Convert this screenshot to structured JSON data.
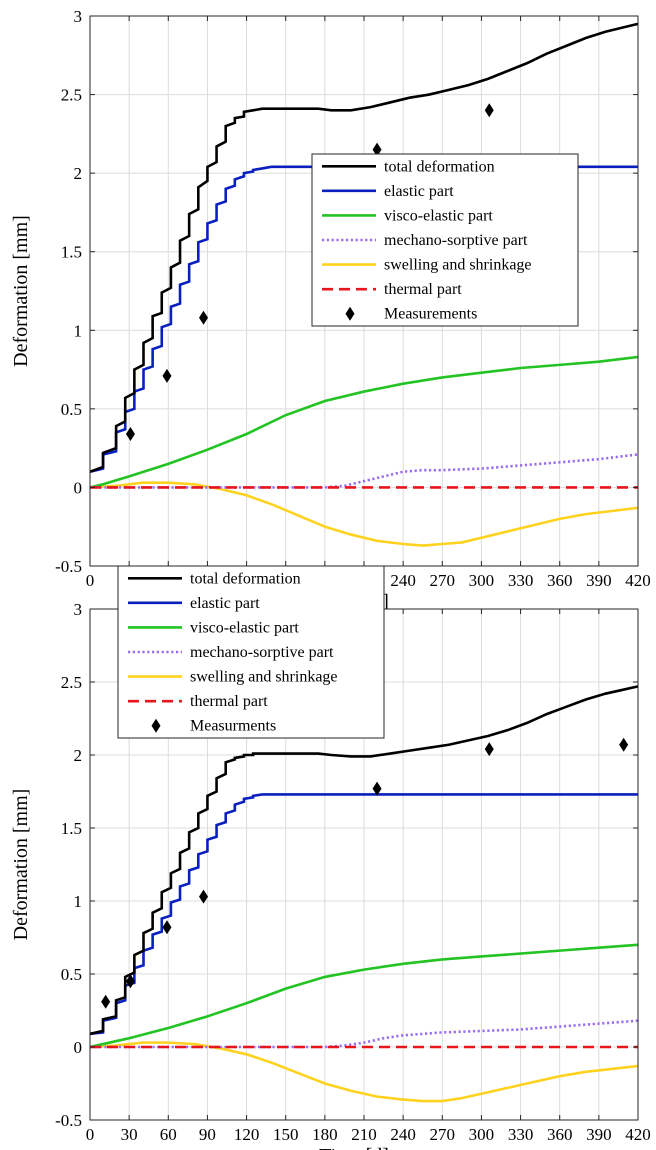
{
  "chart_data": [
    {
      "type": "line",
      "title": "",
      "xlabel": "Time [d]",
      "ylabel": "Deformation [mm]",
      "xlim": [
        0,
        420
      ],
      "ylim": [
        -0.5,
        3
      ],
      "xticks": [
        0,
        30,
        60,
        90,
        120,
        150,
        180,
        210,
        240,
        270,
        300,
        330,
        360,
        390,
        420
      ],
      "yticks": [
        -0.5,
        0,
        0.5,
        1,
        1.5,
        2,
        2.5,
        3
      ],
      "ytick_labels": [
        "-0.5",
        "0",
        "0.5",
        "1",
        "1.5",
        "2",
        "2.5",
        "3"
      ],
      "grid": true,
      "legend_placement": "center-right",
      "series": [
        {
          "name": "total deformation",
          "color": "#000000",
          "style": "solid",
          "x": [
            0,
            10,
            10,
            20,
            20,
            27,
            27,
            34,
            34,
            41,
            41,
            48,
            48,
            55,
            55,
            62,
            62,
            69,
            69,
            76,
            76,
            83,
            83,
            90,
            90,
            97,
            97,
            104,
            104,
            111,
            111,
            118,
            118,
            125,
            125,
            132,
            132,
            139,
            139,
            146,
            146,
            153,
            153,
            160,
            160,
            167,
            167,
            175,
            185,
            200,
            215,
            230,
            245,
            260,
            275,
            290,
            305,
            320,
            335,
            350,
            365,
            380,
            395,
            410,
            420
          ],
          "y": [
            0.1,
            0.13,
            0.22,
            0.25,
            0.39,
            0.42,
            0.57,
            0.6,
            0.75,
            0.78,
            0.92,
            0.95,
            1.09,
            1.11,
            1.24,
            1.27,
            1.4,
            1.43,
            1.57,
            1.6,
            1.74,
            1.77,
            1.91,
            1.95,
            2.04,
            2.07,
            2.17,
            2.2,
            2.3,
            2.32,
            2.35,
            2.36,
            2.39,
            2.4,
            2.4,
            2.41,
            2.41,
            2.41,
            2.41,
            2.41,
            2.41,
            2.41,
            2.41,
            2.41,
            2.41,
            2.41,
            2.41,
            2.41,
            2.4,
            2.4,
            2.42,
            2.45,
            2.48,
            2.5,
            2.53,
            2.56,
            2.6,
            2.65,
            2.7,
            2.76,
            2.81,
            2.86,
            2.9,
            2.93,
            2.95
          ]
        },
        {
          "name": "elastic part",
          "color": "#0a1fbf",
          "style": "solid",
          "x": [
            0,
            10,
            10,
            20,
            20,
            27,
            27,
            34,
            34,
            41,
            41,
            48,
            48,
            55,
            55,
            62,
            62,
            69,
            69,
            76,
            76,
            83,
            83,
            90,
            90,
            97,
            97,
            104,
            104,
            111,
            111,
            118,
            118,
            125,
            125,
            132,
            132,
            139,
            139,
            146,
            146,
            153,
            153,
            160,
            160,
            167,
            167,
            420
          ],
          "y": [
            0.1,
            0.12,
            0.21,
            0.23,
            0.35,
            0.37,
            0.48,
            0.5,
            0.61,
            0.63,
            0.75,
            0.77,
            0.88,
            0.9,
            1.02,
            1.04,
            1.15,
            1.17,
            1.29,
            1.31,
            1.42,
            1.44,
            1.56,
            1.58,
            1.68,
            1.7,
            1.8,
            1.82,
            1.9,
            1.92,
            1.96,
            1.98,
            2.0,
            2.01,
            2.02,
            2.03,
            2.03,
            2.04,
            2.04,
            2.04,
            2.04,
            2.04,
            2.04,
            2.04,
            2.04,
            2.04,
            2.04,
            2.04
          ]
        },
        {
          "name": "visco-elastic part",
          "color": "#22c322",
          "style": "solid",
          "x": [
            0,
            10,
            30,
            60,
            90,
            120,
            150,
            180,
            210,
            240,
            270,
            300,
            330,
            360,
            390,
            420
          ],
          "y": [
            0.0,
            0.02,
            0.07,
            0.15,
            0.24,
            0.34,
            0.46,
            0.55,
            0.61,
            0.66,
            0.7,
            0.73,
            0.76,
            0.78,
            0.8,
            0.83
          ]
        },
        {
          "name": "mechano-sorptive part",
          "color": "#9a6cf0",
          "style": "dotted",
          "x": [
            0,
            180,
            195,
            210,
            225,
            240,
            255,
            270,
            300,
            330,
            360,
            390,
            420
          ],
          "y": [
            0.0,
            0.0,
            0.01,
            0.04,
            0.07,
            0.1,
            0.11,
            0.11,
            0.12,
            0.14,
            0.16,
            0.18,
            0.21
          ]
        },
        {
          "name": "swelling and shrinkage",
          "color": "#ffd21f",
          "style": "solid",
          "x": [
            0,
            20,
            40,
            60,
            80,
            100,
            120,
            140,
            160,
            180,
            200,
            220,
            240,
            255,
            270,
            285,
            300,
            320,
            340,
            360,
            380,
            400,
            420
          ],
          "y": [
            0.0,
            0.01,
            0.03,
            0.03,
            0.02,
            -0.01,
            -0.05,
            -0.11,
            -0.18,
            -0.25,
            -0.3,
            -0.34,
            -0.36,
            -0.37,
            -0.36,
            -0.35,
            -0.32,
            -0.28,
            -0.24,
            -0.2,
            -0.17,
            -0.15,
            -0.13
          ]
        },
        {
          "name": "thermal part",
          "color": "#e8161c",
          "style": "dashed",
          "x": [
            0,
            420
          ],
          "y": [
            0.0,
            0.0
          ]
        },
        {
          "name": "Measurements",
          "color": "#000000",
          "style": "marker",
          "x": [
            31,
            59,
            87,
            220,
            306
          ],
          "y": [
            0.34,
            0.71,
            1.08,
            2.15,
            2.4
          ]
        }
      ]
    },
    {
      "type": "line",
      "title": "",
      "xlabel": "Time [d]",
      "ylabel": "Deformation [mm]",
      "xlim": [
        0,
        420
      ],
      "ylim": [
        -0.5,
        3
      ],
      "xticks": [
        0,
        30,
        60,
        90,
        120,
        150,
        180,
        210,
        240,
        270,
        300,
        330,
        360,
        390,
        420
      ],
      "yticks": [
        -0.5,
        0,
        0.5,
        1,
        1.5,
        2,
        2.5,
        3
      ],
      "ytick_labels": [
        "-0.5",
        "0",
        "0.5",
        "1",
        "1.5",
        "2",
        "2.5",
        "3"
      ],
      "grid": true,
      "legend_placement": "top-left",
      "series": [
        {
          "name": "total deformation",
          "color": "#000000",
          "style": "solid",
          "x": [
            0,
            10,
            10,
            20,
            20,
            27,
            27,
            34,
            34,
            41,
            41,
            48,
            48,
            55,
            55,
            62,
            62,
            69,
            69,
            76,
            76,
            83,
            83,
            90,
            90,
            97,
            97,
            104,
            104,
            111,
            111,
            118,
            118,
            125,
            125,
            132,
            132,
            139,
            139,
            146,
            146,
            153,
            153,
            160,
            160,
            167,
            167,
            175,
            185,
            200,
            215,
            230,
            245,
            260,
            275,
            290,
            305,
            320,
            335,
            350,
            365,
            380,
            395,
            410,
            420
          ],
          "y": [
            0.09,
            0.11,
            0.19,
            0.21,
            0.32,
            0.34,
            0.48,
            0.51,
            0.63,
            0.66,
            0.78,
            0.81,
            0.92,
            0.95,
            1.06,
            1.09,
            1.19,
            1.22,
            1.33,
            1.36,
            1.47,
            1.5,
            1.6,
            1.63,
            1.72,
            1.75,
            1.84,
            1.87,
            1.95,
            1.97,
            1.98,
            1.99,
            2.0,
            2.0,
            2.01,
            2.01,
            2.01,
            2.01,
            2.01,
            2.01,
            2.01,
            2.01,
            2.01,
            2.01,
            2.01,
            2.01,
            2.01,
            2.01,
            2.0,
            1.99,
            1.99,
            2.01,
            2.03,
            2.05,
            2.07,
            2.1,
            2.13,
            2.17,
            2.22,
            2.28,
            2.33,
            2.38,
            2.42,
            2.45,
            2.47
          ]
        },
        {
          "name": "elastic part",
          "color": "#0a1fbf",
          "style": "solid",
          "x": [
            0,
            10,
            10,
            20,
            20,
            27,
            27,
            34,
            34,
            41,
            41,
            48,
            48,
            55,
            55,
            62,
            62,
            69,
            69,
            76,
            76,
            83,
            83,
            90,
            90,
            97,
            97,
            104,
            104,
            111,
            111,
            118,
            118,
            125,
            125,
            132,
            132,
            139,
            139,
            146,
            146,
            153,
            153,
            160,
            160,
            167,
            167,
            420
          ],
          "y": [
            0.09,
            0.1,
            0.18,
            0.2,
            0.3,
            0.32,
            0.42,
            0.44,
            0.54,
            0.56,
            0.66,
            0.68,
            0.77,
            0.79,
            0.88,
            0.9,
            0.99,
            1.01,
            1.1,
            1.12,
            1.21,
            1.23,
            1.32,
            1.34,
            1.42,
            1.44,
            1.52,
            1.54,
            1.6,
            1.62,
            1.66,
            1.68,
            1.7,
            1.71,
            1.72,
            1.73,
            1.73,
            1.73,
            1.73,
            1.73,
            1.73,
            1.73,
            1.73,
            1.73,
            1.73,
            1.73,
            1.73,
            1.73
          ]
        },
        {
          "name": "visco-elastic part",
          "color": "#22c322",
          "style": "solid",
          "x": [
            0,
            10,
            30,
            60,
            90,
            120,
            150,
            180,
            210,
            240,
            270,
            300,
            330,
            360,
            390,
            420
          ],
          "y": [
            0.0,
            0.02,
            0.06,
            0.13,
            0.21,
            0.3,
            0.4,
            0.48,
            0.53,
            0.57,
            0.6,
            0.62,
            0.64,
            0.66,
            0.68,
            0.7
          ]
        },
        {
          "name": "mechano-sorptive part",
          "color": "#9a6cf0",
          "style": "dotted",
          "x": [
            0,
            180,
            195,
            210,
            225,
            240,
            255,
            270,
            300,
            330,
            360,
            390,
            420
          ],
          "y": [
            0.0,
            0.0,
            0.01,
            0.03,
            0.06,
            0.08,
            0.09,
            0.1,
            0.11,
            0.12,
            0.14,
            0.16,
            0.18
          ]
        },
        {
          "name": "swelling and shrinkage",
          "color": "#ffd21f",
          "style": "solid",
          "x": [
            0,
            20,
            40,
            60,
            80,
            100,
            120,
            140,
            160,
            180,
            200,
            220,
            240,
            255,
            270,
            285,
            300,
            320,
            340,
            360,
            380,
            400,
            420
          ],
          "y": [
            0.0,
            0.01,
            0.03,
            0.03,
            0.02,
            -0.01,
            -0.05,
            -0.11,
            -0.18,
            -0.25,
            -0.3,
            -0.34,
            -0.36,
            -0.37,
            -0.37,
            -0.35,
            -0.32,
            -0.28,
            -0.24,
            -0.2,
            -0.17,
            -0.15,
            -0.13
          ]
        },
        {
          "name": "thermal part",
          "color": "#e8161c",
          "style": "dashed",
          "x": [
            0,
            420
          ],
          "y": [
            0.0,
            0.0
          ]
        },
        {
          "name": "Measurments",
          "color": "#000000",
          "style": "marker",
          "x": [
            12,
            31,
            59,
            87,
            220,
            306,
            409
          ],
          "y": [
            0.31,
            0.45,
            0.82,
            1.03,
            1.77,
            2.04,
            2.07
          ]
        }
      ]
    }
  ]
}
